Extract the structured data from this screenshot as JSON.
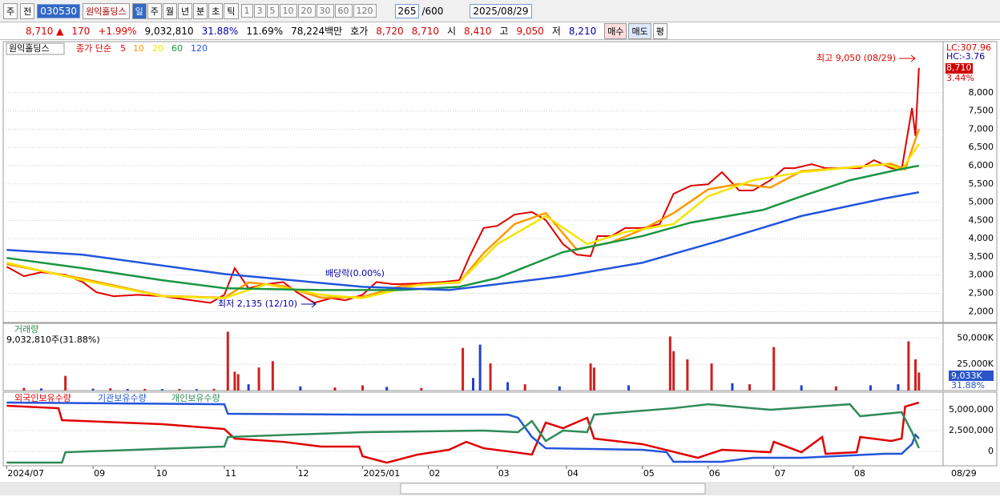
{
  "toolbar": {
    "type_btn": "주",
    "prev_btn": "전",
    "code": "030530",
    "name": "원익홀딩스",
    "periods": [
      "일",
      "주",
      "월",
      "년",
      "분",
      "초",
      "틱"
    ],
    "intervals": [
      "1",
      "3",
      "5",
      "10",
      "20",
      "30",
      "60",
      "120"
    ],
    "count": "265",
    "max": "/600",
    "date": "2025/08/29"
  },
  "quote": {
    "price": "8,710 ▲",
    "change": "170",
    "rate": "+1.99%",
    "volume": "9,032,810",
    "turnover": "31.88%",
    "ratio": "11.69%",
    "amount": "78,224백만",
    "ask_label": "호가",
    "ask": "8,720",
    "bid": "8,710",
    "open_label": "시",
    "open": "8,410",
    "high_label": "고",
    "high": "9,050",
    "low_label": "저",
    "low": "8,210",
    "buy": "매수",
    "sell": "매도",
    "avg": "평"
  },
  "chart_data": [
    {
      "type": "line",
      "title": "원익홀딩스",
      "legend_prefix": "종가 단순",
      "xlim": [
        -1,
        271
      ],
      "ylim": [
        1700,
        9400
      ],
      "yticks": [
        {
          "value": 2000,
          "label": "2,000"
        },
        {
          "value": 2500,
          "label": "2,500"
        },
        {
          "value": 3000,
          "label": "3,000"
        },
        {
          "value": 3500,
          "label": "3,500"
        },
        {
          "value": 4000,
          "label": "4,000"
        },
        {
          "value": 4500,
          "label": "4,500"
        },
        {
          "value": 5000,
          "label": "5,000"
        },
        {
          "value": 5500,
          "label": "5,500"
        },
        {
          "value": 6000,
          "label": "6,000"
        },
        {
          "value": 6500,
          "label": "6,500"
        },
        {
          "value": 7000,
          "label": "7,000"
        },
        {
          "value": 7500,
          "label": "7,500"
        },
        {
          "value": 8000,
          "label": "8,000"
        }
      ],
      "grid": true,
      "annotations": [
        "최고 9,050 (08/29)",
        "최저 2,135 (12/10)",
        "배당락(0.00%)"
      ],
      "side_labels": [
        "LC:307.96",
        "HC:-3.76",
        "8,710",
        "3.44%"
      ],
      "series": [
        {
          "name": "5",
          "color": "#e00000",
          "x": [
            0,
            5,
            10,
            17,
            22,
            26,
            31,
            38,
            45,
            52,
            59,
            63,
            66,
            70,
            75,
            80,
            84,
            89,
            94,
            98,
            103,
            107,
            112,
            119,
            126,
            131,
            134,
            138,
            142,
            147,
            152,
            156,
            161,
            165,
            169,
            171,
            175,
            179,
            184,
            189,
            193,
            198,
            203,
            207,
            212,
            216,
            221,
            225,
            228,
            233,
            237,
            242,
            247,
            251,
            256,
            259,
            262,
            263,
            264
          ],
          "values": [
            3230,
            2970,
            3080,
            3010,
            2810,
            2530,
            2420,
            2460,
            2420,
            2330,
            2240,
            2460,
            3190,
            2640,
            2750,
            2810,
            2530,
            2240,
            2370,
            2310,
            2460,
            2810,
            2750,
            2770,
            2810,
            2860,
            3520,
            4290,
            4350,
            4660,
            4730,
            4510,
            3850,
            3560,
            3520,
            4070,
            4070,
            4290,
            4290,
            4400,
            5230,
            5450,
            5490,
            5820,
            5320,
            5320,
            5600,
            5930,
            5930,
            6040,
            5930,
            5930,
            5930,
            6150,
            5930,
            5890,
            7580,
            6810,
            8680
          ]
        },
        {
          "name": "10",
          "color": "#ff9900",
          "x": [
            0,
            22,
            45,
            63,
            70,
            80,
            91,
            103,
            114,
            131,
            138,
            147,
            156,
            165,
            175,
            184,
            193,
            203,
            212,
            221,
            230,
            244,
            256,
            260,
            264
          ],
          "values": [
            3300,
            2900,
            2430,
            2380,
            2800,
            2700,
            2380,
            2400,
            2700,
            2800,
            3600,
            4400,
            4700,
            3700,
            3900,
            4250,
            4700,
            5350,
            5500,
            5400,
            5850,
            5950,
            6050,
            5900,
            7000
          ]
        },
        {
          "name": "20",
          "color": "#f5e400",
          "x": [
            0,
            22,
            45,
            63,
            75,
            91,
            103,
            119,
            131,
            142,
            156,
            168,
            179,
            193,
            203,
            216,
            230,
            254,
            259,
            264
          ],
          "values": [
            3340,
            2860,
            2420,
            2370,
            2750,
            2460,
            2370,
            2730,
            2810,
            3850,
            4620,
            3850,
            4180,
            4400,
            5160,
            5600,
            5820,
            6040,
            5890,
            6590
          ]
        },
        {
          "name": "60",
          "color": "#1a9641",
          "x": [
            0,
            22,
            45,
            63,
            91,
            114,
            131,
            142,
            161,
            184,
            198,
            219,
            230,
            244,
            258,
            264
          ],
          "values": [
            3470,
            3190,
            2860,
            2640,
            2590,
            2590,
            2680,
            2920,
            3630,
            4070,
            4440,
            4790,
            5160,
            5600,
            5890,
            6000
          ]
        },
        {
          "name": "120",
          "color": "#2255dd",
          "x": [
            0,
            22,
            63,
            103,
            128,
            142,
            161,
            184,
            207,
            230,
            254,
            264
          ],
          "values": [
            3690,
            3560,
            3030,
            2680,
            2590,
            2750,
            2970,
            3340,
            3960,
            4620,
            5100,
            5270
          ]
        }
      ]
    },
    {
      "type": "bar",
      "title": "거래량",
      "subtitle": "9,032,810주(31.88%)",
      "xlim": [
        -1,
        271
      ],
      "ylim": [
        0,
        64000
      ],
      "yticks": [
        {
          "value": 25000,
          "label": "25,000K"
        },
        {
          "value": 50000,
          "label": "50,000K"
        }
      ],
      "grid": true,
      "side_labels": [
        "9,033K",
        "31.88%"
      ],
      "x": [
        5,
        10,
        17,
        25,
        30,
        35,
        40,
        45,
        50,
        55,
        60,
        64,
        66,
        67,
        70,
        73,
        77,
        85,
        95,
        103,
        110,
        120,
        132,
        135,
        137,
        140,
        145,
        150,
        160,
        169,
        170,
        180,
        192,
        193,
        197,
        204,
        210,
        215,
        222,
        230,
        240,
        250,
        258,
        261,
        263,
        264
      ],
      "values": [
        2500,
        2000,
        14000,
        1800,
        2200,
        1500,
        1600,
        1400,
        1500,
        1300,
        1700,
        56000,
        18000,
        15600,
        6000,
        21900,
        28000,
        4000,
        3000,
        5000,
        3500,
        2500,
        40600,
        12000,
        43700,
        25800,
        8000,
        6000,
        4000,
        25800,
        21900,
        5000,
        51500,
        37500,
        29700,
        25800,
        7000,
        6000,
        41400,
        5000,
        4000,
        5000,
        6000,
        46900,
        29700,
        17200
      ],
      "bar_colors": [
        "#d02020",
        "#2040d0",
        "#d02020",
        "#2040d0",
        "#d02020",
        "#2040d0",
        "#d02020",
        "#2040d0",
        "#d02020",
        "#2040d0",
        "#d02020",
        "#d02020",
        "#d02020",
        "#d02020",
        "#2040d0",
        "#d02020",
        "#d02020",
        "#2040d0",
        "#d02020",
        "#d02020",
        "#2040d0",
        "#d02020",
        "#d02020",
        "#2040d0",
        "#2040d0",
        "#d02020",
        "#2040d0",
        "#d02020",
        "#2040d0",
        "#d02020",
        "#d02020",
        "#2040d0",
        "#d02020",
        "#d02020",
        "#d02020",
        "#d02020",
        "#2040d0",
        "#d02020",
        "#d02020",
        "#2040d0",
        "#d02020",
        "#2040d0",
        "#2040d0",
        "#d02020",
        "#d02020",
        "#d02020"
      ]
    },
    {
      "type": "line",
      "xlim": [
        -1,
        271
      ],
      "ylim": [
        -1730000,
        7120000
      ],
      "yticks": [
        0,
        {
          "value": 2500000,
          "label": "2,500,000"
        },
        {
          "value": 5000000,
          "label": "5,000,000"
        }
      ],
      "grid": true,
      "xticks": [
        {
          "value": 0,
          "label": "2024/07"
        },
        {
          "value": 25,
          "label": "09"
        },
        {
          "value": 43,
          "label": "10"
        },
        {
          "value": 63,
          "label": "11"
        },
        {
          "value": 84,
          "label": "12"
        },
        {
          "value": 103,
          "label": "2025/01"
        },
        {
          "value": 122,
          "label": "02"
        },
        {
          "value": 142,
          "label": "03"
        },
        {
          "value": 162,
          "label": "04"
        },
        {
          "value": 184,
          "label": "05"
        },
        {
          "value": 203,
          "label": "06"
        },
        {
          "value": 222,
          "label": "07"
        },
        {
          "value": 245,
          "label": "08"
        }
      ],
      "x_end_label": "08/29",
      "series": [
        {
          "name": "외국인보유수량",
          "color": "#e00000",
          "x": [
            0,
            15,
            16,
            45,
            63,
            66,
            80,
            91,
            102,
            103,
            110,
            119,
            128,
            133,
            138,
            147,
            152,
            156,
            161,
            168,
            170,
            184,
            200,
            207,
            221,
            222,
            230,
            236,
            237,
            246,
            247,
            256,
            259,
            260,
            264
          ],
          "values": [
            5480000,
            5190000,
            3750000,
            3270000,
            2690000,
            1540000,
            1150000,
            580000,
            580000,
            -580000,
            -1350000,
            -380000,
            190000,
            1150000,
            380000,
            -100000,
            -380000,
            3460000,
            2790000,
            4040000,
            1540000,
            870000,
            -770000,
            190000,
            -100000,
            1150000,
            -100000,
            1730000,
            -290000,
            -100000,
            1730000,
            1250000,
            1540000,
            5380000,
            5870000
          ]
        },
        {
          "name": "기관보유수량",
          "color": "#2255dd",
          "x": [
            0,
            63,
            64,
            103,
            145,
            148,
            152,
            156,
            184,
            191,
            193,
            207,
            216,
            230,
            254,
            259,
            262,
            263,
            264
          ],
          "values": [
            5870000,
            5670000,
            4520000,
            4420000,
            4420000,
            4040000,
            1730000,
            380000,
            190000,
            -100000,
            -1250000,
            -1250000,
            -770000,
            -770000,
            -290000,
            -290000,
            870000,
            2000000,
            1540000
          ]
        },
        {
          "name": "개인보유수량",
          "color": "#2e8b57",
          "x": [
            0,
            16,
            17,
            63,
            64,
            103,
            138,
            148,
            152,
            156,
            161,
            168,
            170,
            193,
            203,
            221,
            244,
            247,
            259,
            262,
            264
          ],
          "values": [
            -1350000,
            -1350000,
            -100000,
            580000,
            1730000,
            2310000,
            2500000,
            2310000,
            3650000,
            1250000,
            2500000,
            2310000,
            4420000,
            5190000,
            5670000,
            5000000,
            5670000,
            4230000,
            4710000,
            2310000,
            380000
          ]
        }
      ]
    }
  ]
}
